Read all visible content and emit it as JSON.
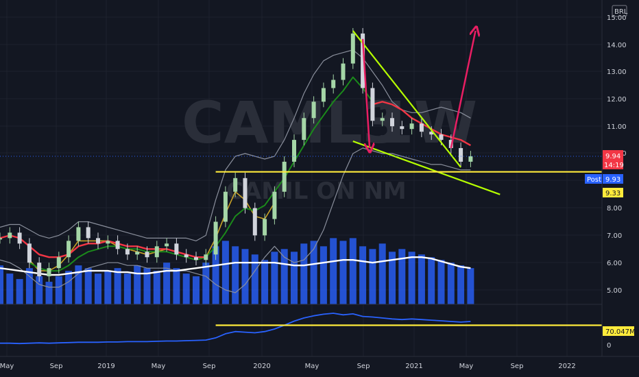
{
  "watermark": {
    "symbol": "CAML3",
    "interval": "1W",
    "name": "CAMIL ON NM"
  },
  "currency": "BRL",
  "price_tags": {
    "last": {
      "value": "9.94",
      "time": "14:19",
      "color": "#f23645"
    },
    "post": {
      "label": "Post",
      "value": "9.93",
      "color": "#2962ff"
    },
    "level": {
      "value": "9.33",
      "color": "#ffeb3b"
    },
    "volume_ma": {
      "value": "70.047M",
      "color": "#ffeb3b"
    }
  },
  "chart_data": {
    "type": "line",
    "title": "",
    "price_axis": {
      "ticks": [
        "5.00",
        "6.00",
        "7.00",
        "8.00",
        "9.00",
        "10.00",
        "11.00",
        "12.00",
        "13.00",
        "14.00",
        "15.00"
      ],
      "ylim": [
        4.5,
        15.2
      ]
    },
    "indicator_axis": {
      "ticks": [
        "0"
      ]
    },
    "time_axis": {
      "ticks": [
        "May",
        "Sep",
        "2019",
        "May",
        "Sep",
        "2020",
        "May",
        "Sep",
        "2021",
        "May",
        "Sep",
        "2022"
      ]
    },
    "series": [
      {
        "key": "price",
        "color": "#d1d4dc",
        "values": [
          6.9,
          7.1,
          6.7,
          6.0,
          5.5,
          5.8,
          6.2,
          6.8,
          7.3,
          6.9,
          6.7,
          6.8,
          6.5,
          6.3,
          6.4,
          6.2,
          6.6,
          6.7,
          6.3,
          6.2,
          6.1,
          6.3,
          7.5,
          8.6,
          9.1,
          8.0,
          7.0,
          7.6,
          8.6,
          9.7,
          10.5,
          11.3,
          11.9,
          12.4,
          12.7,
          13.3,
          14.4,
          12.4,
          11.2,
          11.3,
          11.0,
          10.9,
          11.1,
          10.8,
          10.7,
          10.5,
          10.2,
          9.7,
          9.9
        ]
      },
      {
        "key": "ema_red",
        "color": "#f23645",
        "values": [
          6.9,
          7.0,
          6.9,
          6.6,
          6.3,
          6.2,
          6.2,
          6.3,
          6.6,
          6.7,
          6.7,
          6.8,
          6.7,
          6.6,
          6.6,
          6.5,
          6.5,
          6.5,
          6.4,
          6.3,
          6.2,
          6.2,
          null,
          null,
          null,
          null,
          null,
          null,
          null,
          null,
          null,
          null,
          null,
          null,
          null,
          null,
          null,
          null,
          11.8,
          11.9,
          11.8,
          11.6,
          11.3,
          11.1,
          10.9,
          10.7,
          10.6,
          10.5,
          10.3
        ]
      },
      {
        "key": "ema_green",
        "color": "#1b8a1b",
        "values": [
          null,
          null,
          null,
          6.0,
          5.8,
          5.7,
          5.7,
          5.9,
          6.2,
          6.4,
          6.5,
          6.6,
          6.6,
          6.5,
          6.5,
          6.4,
          6.4,
          6.4,
          6.3,
          6.2,
          6.1,
          6.2,
          6.6,
          7.1,
          7.7,
          8.0,
          7.9,
          8.1,
          8.6,
          9.1,
          9.7,
          10.3,
          10.9,
          11.4,
          11.9,
          12.3,
          12.8,
          12.4,
          11.9,
          null,
          null,
          null,
          null,
          null,
          null,
          null,
          null,
          null,
          null
        ]
      },
      {
        "key": "ema_yellow",
        "color": "#c9a227",
        "values": [
          null,
          null,
          null,
          6.1,
          5.7,
          5.7,
          5.9,
          6.3,
          6.8,
          6.8,
          6.8,
          6.8,
          6.6,
          6.5,
          6.4,
          6.3,
          6.4,
          6.5,
          6.4,
          6.3,
          6.2,
          6.2,
          6.9,
          7.8,
          8.6,
          8.3,
          7.7,
          7.6,
          8.2,
          null,
          null,
          null,
          null,
          null,
          null,
          null,
          null,
          null,
          null,
          null,
          null,
          null,
          null,
          null,
          null,
          null,
          null,
          null,
          null
        ]
      },
      {
        "key": "bb_upper",
        "color": "#8a8f9c",
        "values": [
          7.3,
          7.4,
          7.4,
          7.2,
          7.0,
          6.9,
          7.0,
          7.2,
          7.5,
          7.5,
          7.4,
          7.3,
          7.2,
          7.1,
          7.0,
          6.9,
          6.9,
          6.9,
          6.9,
          6.9,
          6.8,
          7.0,
          8.3,
          9.4,
          9.9,
          10.0,
          9.9,
          9.8,
          9.9,
          10.5,
          11.3,
          12.2,
          12.9,
          13.4,
          13.6,
          13.7,
          13.8,
          13.5,
          13.0,
          12.5,
          11.9,
          11.6,
          11.5,
          11.5,
          11.6,
          11.7,
          11.6,
          11.5,
          11.3
        ]
      },
      {
        "key": "bb_lower",
        "color": "#8a8f9c",
        "values": [
          6.1,
          6.0,
          5.8,
          5.5,
          5.2,
          5.1,
          5.1,
          5.3,
          5.6,
          5.8,
          5.9,
          6.0,
          6.0,
          5.9,
          5.9,
          5.8,
          5.8,
          5.8,
          5.7,
          5.7,
          5.6,
          5.5,
          5.2,
          5.0,
          4.9,
          5.2,
          5.7,
          6.2,
          6.6,
          6.2,
          6.0,
          6.1,
          6.5,
          7.2,
          8.2,
          9.2,
          10.0,
          10.2,
          10.1,
          10.0,
          10.0,
          9.9,
          9.8,
          9.7,
          9.6,
          9.6,
          9.5,
          9.4,
          9.4
        ]
      },
      {
        "key": "vol_ma",
        "color": "#ffffff",
        "values": [
          5.8,
          5.75,
          5.7,
          5.65,
          5.6,
          5.55,
          5.55,
          5.6,
          5.65,
          5.7,
          5.7,
          5.7,
          5.65,
          5.65,
          5.6,
          5.6,
          5.65,
          5.7,
          5.7,
          5.75,
          5.8,
          5.85,
          5.9,
          5.95,
          6.0,
          6.0,
          6.0,
          6.0,
          6.0,
          5.95,
          5.9,
          5.9,
          5.95,
          6.0,
          6.05,
          6.1,
          6.1,
          6.05,
          6.0,
          6.05,
          6.1,
          6.15,
          6.2,
          6.2,
          6.15,
          6.05,
          5.95,
          5.85,
          5.8
        ]
      },
      {
        "key": "volume",
        "color": "#2962ff",
        "values": [
          5.9,
          5.6,
          5.4,
          5.8,
          5.5,
          5.3,
          5.5,
          5.7,
          5.9,
          5.8,
          5.6,
          5.7,
          5.8,
          5.6,
          5.9,
          5.8,
          5.7,
          6.0,
          5.8,
          5.6,
          5.5,
          6.0,
          6.6,
          6.8,
          6.6,
          6.5,
          6.3,
          6.1,
          6.4,
          6.5,
          6.4,
          6.7,
          6.8,
          6.6,
          6.9,
          6.8,
          6.9,
          6.6,
          6.5,
          6.7,
          6.4,
          6.5,
          6.4,
          6.3,
          6.2,
          6.1,
          6.0,
          5.9,
          5.8
        ]
      },
      {
        "key": "indicator",
        "color": "#2962ff",
        "values": [
          0.05,
          0.05,
          0.04,
          0.05,
          0.06,
          0.05,
          0.06,
          0.07,
          0.08,
          0.08,
          0.08,
          0.09,
          0.09,
          0.1,
          0.1,
          0.1,
          0.11,
          0.12,
          0.12,
          0.13,
          0.14,
          0.15,
          0.22,
          0.35,
          0.42,
          0.4,
          0.38,
          0.42,
          0.5,
          0.62,
          0.75,
          0.85,
          0.92,
          0.97,
          1.0,
          0.95,
          0.98,
          0.9,
          0.88,
          0.85,
          0.82,
          0.8,
          0.82,
          0.8,
          0.78,
          0.76,
          0.74,
          0.72,
          0.74
        ]
      }
    ],
    "annotations": [
      {
        "name": "upper-wedge-line",
        "color": "#b6ff00",
        "points": [
          [
            36,
            14.5
          ],
          [
            47,
            9.5
          ]
        ]
      },
      {
        "name": "lower-wedge-line",
        "color": "#b6ff00",
        "points": [
          [
            36,
            10.45
          ],
          [
            51,
            8.5
          ]
        ]
      },
      {
        "name": "support-line",
        "color": "#ffeb3b",
        "points": [
          [
            22,
            9.33
          ],
          [
            57,
            9.33
          ]
        ]
      },
      {
        "name": "volume-ma-line",
        "color": "#ffeb3b",
        "points": [
          [
            22,
            0.62
          ],
          [
            57,
            0.62
          ]
        ]
      },
      {
        "name": "forecast-arrow-down",
        "color": "#e91e63",
        "points": [
          [
            37,
            14.2
          ],
          [
            37.7,
            10.2
          ]
        ]
      },
      {
        "name": "forecast-arrow-up",
        "color": "#e91e63",
        "points": [
          [
            46,
            10.2
          ],
          [
            48.5,
            14.5
          ]
        ]
      }
    ]
  }
}
